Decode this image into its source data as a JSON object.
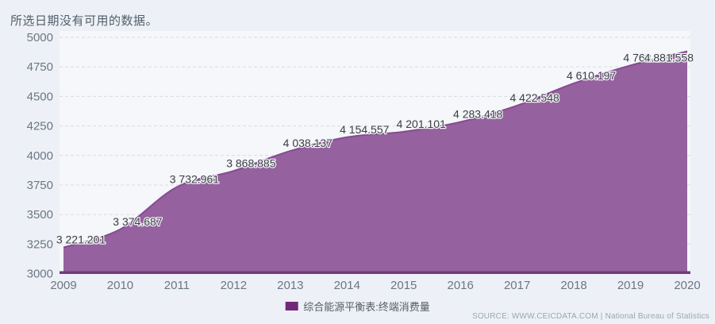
{
  "title": "所选日期没有可用的数据。",
  "legend": {
    "label": "综合能源平衡表:终端消费量",
    "swatch_color": "#702a78"
  },
  "source": "SOURCE: WWW.CEICDATA.COM | National Bureau of Statistics",
  "colors": {
    "background": "#edf1f7",
    "plot_bg": "#f5f7fa",
    "area_fill": "#96619f",
    "area_line": "#874b90",
    "baseline": "#713a7a",
    "grid": "#d7dbe3",
    "axis_text": "#6b7683",
    "data_label": "#3a3f45",
    "label_halo": "#f3f4f7",
    "title_text": "#525d68",
    "source_text": "#9aa5b0",
    "legend_text": "#565b63"
  },
  "chart_data": {
    "type": "area",
    "title": "所选日期没有可用的数据。",
    "categories": [
      "2009",
      "2010",
      "2011",
      "2012",
      "2013",
      "2014",
      "2015",
      "2016",
      "2017",
      "2018",
      "2019",
      "2020"
    ],
    "values": [
      3221.201,
      3374.687,
      3732.961,
      3868.885,
      4038.137,
      4154.557,
      4201.101,
      4283.418,
      4422.548,
      4610.197,
      4762.193,
      4881.558
    ],
    "value_labels": [
      "3 221.201",
      "3 374.687",
      "3 732.961",
      "3 868.885",
      "4 038.137",
      "4 154.557",
      "4 201.101",
      "4 283.418",
      "4 422.548",
      "4 610.197",
      "4 762.193",
      "4 881.558"
    ],
    "series_name": "综合能源平衡表:终端消费量",
    "xlabel": "",
    "ylabel": "",
    "ylim": [
      3000,
      5000
    ],
    "yticks": [
      5000,
      4750,
      4500,
      4250,
      4000,
      3750,
      3500,
      3250,
      3000
    ],
    "grid": true,
    "grid_style": "dashed",
    "legend_position": "bottom-center",
    "source": "SOURCE: WWW.CEICDATA.COM | National Bureau of Statistics"
  }
}
